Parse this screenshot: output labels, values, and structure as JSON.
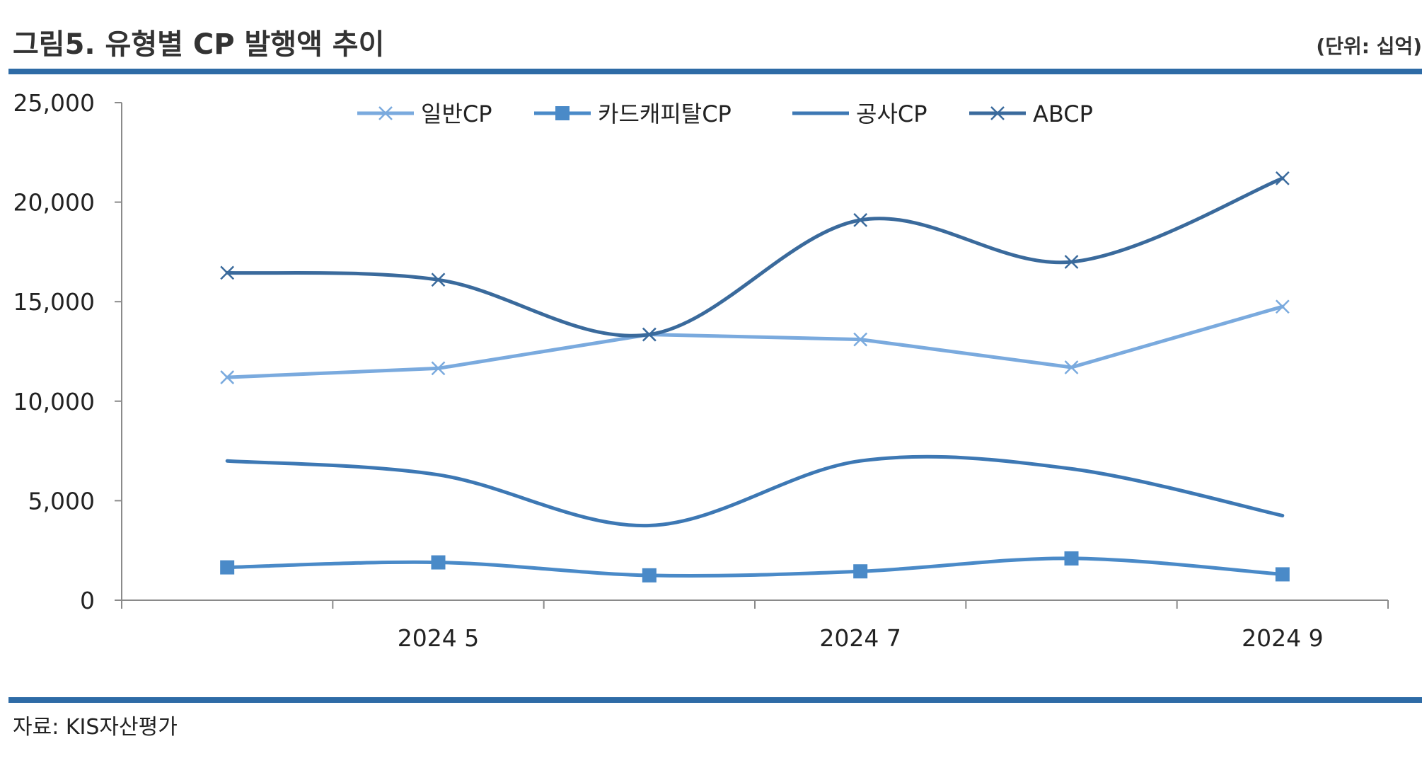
{
  "header": {
    "title": "그림5. 유형별 CP 발행액 추이",
    "unit": "(단위: 십억)"
  },
  "footer": {
    "source": "자료: KIS자산평가"
  },
  "chart_data": {
    "type": "line",
    "x": [
      "2024 4",
      "2024 5",
      "2024 6",
      "2024 7",
      "2024 8",
      "2024 9"
    ],
    "x_tick_labels": [
      "",
      "2024 5",
      "",
      "2024 7",
      "",
      "2024 9"
    ],
    "y_ticks": [
      "0",
      "5,000",
      "10,000",
      "15,000",
      "20,000",
      "25,000"
    ],
    "ylim": [
      0,
      25000
    ],
    "grid": false,
    "legend_position": "top",
    "series": [
      {
        "name": "일반CP",
        "values": [
          11200,
          11650,
          13350,
          13100,
          11700,
          14750
        ],
        "color": "#7aaade",
        "marker": "x",
        "smooth": false
      },
      {
        "name": "카드캐피탈CP",
        "values": [
          1650,
          1900,
          1250,
          1450,
          2100,
          1300
        ],
        "color": "#4a8ac8",
        "marker": "square",
        "smooth": true
      },
      {
        "name": "공사CP",
        "values": [
          7000,
          6300,
          3750,
          7000,
          6600,
          4250
        ],
        "color": "#3d78b4",
        "marker": "none",
        "smooth": true
      },
      {
        "name": "ABCP",
        "values": [
          16450,
          16100,
          13350,
          19100,
          17000,
          21200
        ],
        "color": "#3a6a9c",
        "marker": "x",
        "smooth": true
      }
    ]
  }
}
